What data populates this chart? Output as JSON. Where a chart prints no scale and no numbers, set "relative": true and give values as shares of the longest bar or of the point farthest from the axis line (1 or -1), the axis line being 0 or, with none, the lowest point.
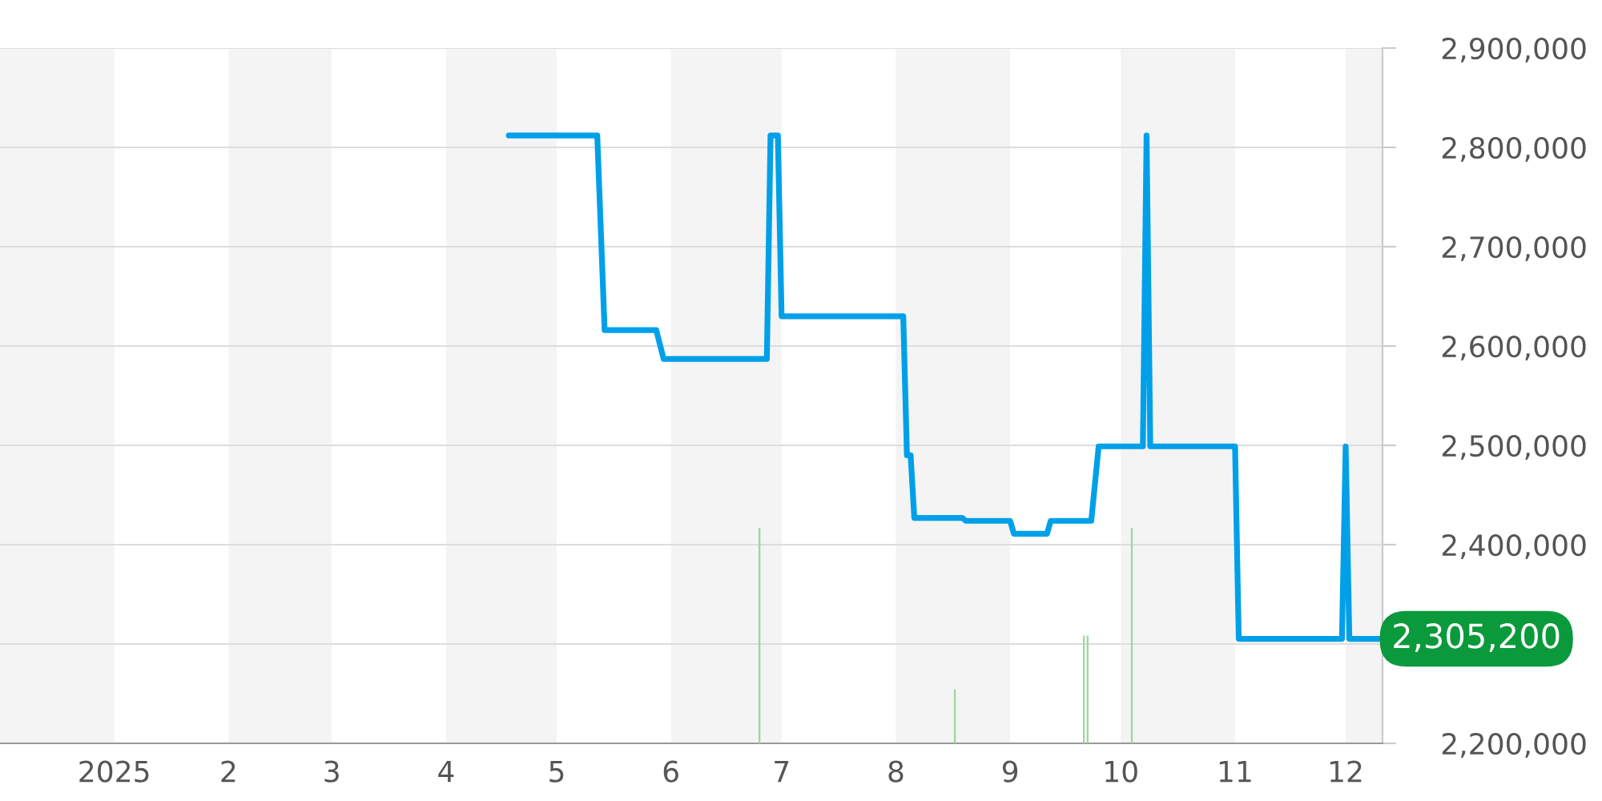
{
  "chart_data": [
    {
      "type": "line",
      "x": [
        "2025-04-18",
        "2025-05-12",
        "2025-05-14",
        "2025-05-28",
        "2025-05-30",
        "2025-06-27",
        "2025-06-28",
        "2025-06-30",
        "2025-07-01",
        "2025-08-03",
        "2025-08-04",
        "2025-08-05",
        "2025-08-06",
        "2025-08-19",
        "2025-08-20",
        "2025-09-01",
        "2025-09-02",
        "2025-09-11",
        "2025-09-12",
        "2025-09-23",
        "2025-09-25",
        "2025-10-07",
        "2025-10-08",
        "2025-10-09",
        "2025-11-01",
        "2025-11-02",
        "2025-11-30",
        "2025-12-01",
        "2025-12-02",
        "2025-12-10"
      ],
      "series": [
        {
          "color": "#00a0e9",
          "values": [
            2812000,
            2812000,
            2616000,
            2616000,
            2587000,
            2587000,
            2812000,
            2812000,
            2630000,
            2630000,
            2490000,
            2490000,
            2427000,
            2427000,
            2424000,
            2424000,
            2411000,
            2411000,
            2424000,
            2424000,
            2499000,
            2499000,
            2812000,
            2499000,
            2499000,
            2305200,
            2305200,
            2499000,
            2305200,
            2305200
          ]
        }
      ],
      "xlim": [
        "2024-12-01",
        "2025-12-11"
      ],
      "xticks": [
        {
          "value": "2025-01-01",
          "label": "2025"
        },
        {
          "value": "2025-02-01",
          "label": "2"
        },
        {
          "value": "2025-03-01",
          "label": "3"
        },
        {
          "value": "2025-04-01",
          "label": "4"
        },
        {
          "value": "2025-05-01",
          "label": "5"
        },
        {
          "value": "2025-06-01",
          "label": "6"
        },
        {
          "value": "2025-07-01",
          "label": "7"
        },
        {
          "value": "2025-08-01",
          "label": "8"
        },
        {
          "value": "2025-09-01",
          "label": "9"
        },
        {
          "value": "2025-10-01",
          "label": "10"
        },
        {
          "value": "2025-11-01",
          "label": "11"
        },
        {
          "value": "2025-12-01",
          "label": "12"
        }
      ],
      "ylim": [
        2200000,
        2900000
      ],
      "yticks": [
        {
          "value": 2200000,
          "label": "2,200,000"
        },
        {
          "value": 2300000,
          "label": null
        },
        {
          "value": 2400000,
          "label": "2,400,000"
        },
        {
          "value": 2500000,
          "label": "2,500,000"
        },
        {
          "value": 2600000,
          "label": "2,600,000"
        },
        {
          "value": 2700000,
          "label": "2,700,000"
        },
        {
          "value": 2800000,
          "label": "2,800,000"
        },
        {
          "value": 2900000,
          "label": "2,900,000"
        }
      ],
      "grid": "y",
      "line_style": "solid",
      "marker": "none",
      "bands": [
        {
          "axis": "x",
          "from": "2024-12-01",
          "to": "2025-01-01",
          "color": "#f4f4f4"
        },
        {
          "axis": "x",
          "from": "2025-02-01",
          "to": "2025-03-01",
          "color": "#f4f4f4"
        },
        {
          "axis": "x",
          "from": "2025-04-01",
          "to": "2025-05-01",
          "color": "#f4f4f4"
        },
        {
          "axis": "x",
          "from": "2025-06-01",
          "to": "2025-07-01",
          "color": "#f4f4f4"
        },
        {
          "axis": "x",
          "from": "2025-08-01",
          "to": "2025-09-01",
          "color": "#f4f4f4"
        },
        {
          "axis": "x",
          "from": "2025-10-01",
          "to": "2025-11-01",
          "color": "#f4f4f4"
        },
        {
          "axis": "x",
          "from": "2025-12-01",
          "to": "2025-12-11",
          "color": "#f4f4f4"
        }
      ],
      "annotations": [
        "2,305,200"
      ]
    },
    {
      "type": "bar",
      "relative": true,
      "x": [
        "2025-06-25",
        "2025-08-17",
        "2025-09-21",
        "2025-09-22",
        "2025-10-04"
      ],
      "series": [
        {
          "color": "#9ed5a0",
          "values": [
            1,
            0.25,
            0.5,
            0.5,
            1
          ]
        }
      ],
      "xlim": [
        "2024-12-01",
        "2025-12-11"
      ]
    }
  ]
}
